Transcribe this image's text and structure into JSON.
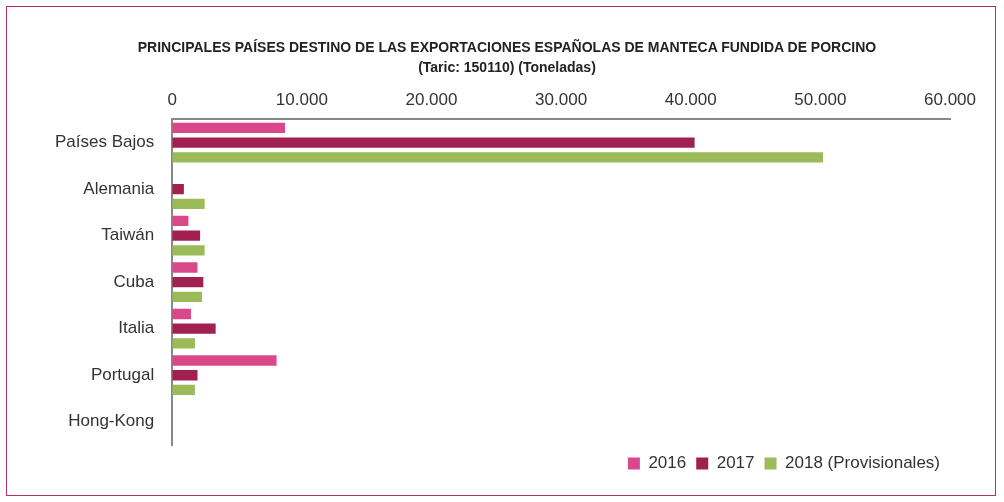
{
  "chart_data": {
    "type": "bar",
    "orientation": "horizontal",
    "title": "PRINCIPALES PAÍSES DESTINO DE LAS EXPORTACIONES ESPAÑOLAS DE  MANTECA FUNDIDA DE PORCINO (Taric: 150110) (Toneladas)",
    "categories": [
      "Países Bajos",
      "Alemania",
      "Taiwán",
      "Cuba",
      "Italia",
      "Portugal",
      "Hong-Kong"
    ],
    "series": [
      {
        "name": "2016",
        "color": "#d9488a",
        "values": [
          8700,
          0,
          1250,
          1950,
          1450,
          8050,
          0
        ]
      },
      {
        "name": "2017",
        "color": "#a0214f",
        "values": [
          40300,
          900,
          2150,
          2400,
          3350,
          1950,
          0
        ]
      },
      {
        "name": "2018 (Provisionales)",
        "color": "#9bbb59",
        "values": [
          50200,
          2500,
          2500,
          2300,
          1750,
          1750,
          0
        ]
      }
    ],
    "xlim": [
      0,
      60000
    ],
    "xticks": [
      0,
      {
        "value": 10000,
        "label": "10.000"
      },
      {
        "value": 20000,
        "label": "20.000"
      },
      {
        "value": 30000,
        "label": "30.000"
      },
      {
        "value": 40000,
        "label": "40.000"
      },
      {
        "value": 50000,
        "label": "50.000"
      },
      {
        "value": 60000,
        "label": "60.000"
      }
    ],
    "grid": false,
    "legend": "bottom right"
  }
}
